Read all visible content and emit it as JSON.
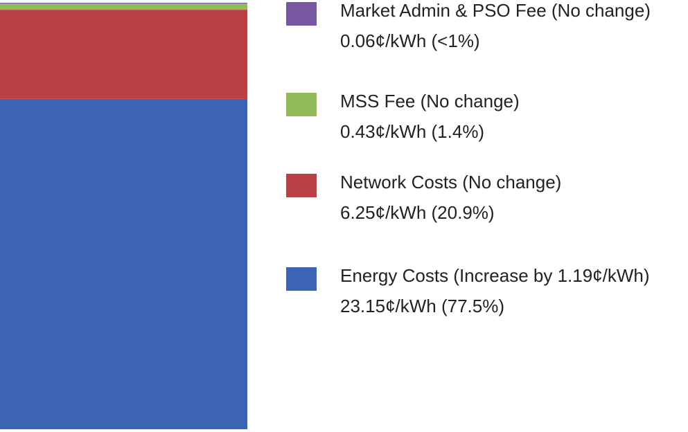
{
  "chart_data": {
    "type": "stacked_bar",
    "categories": [
      null
    ],
    "series": [
      {
        "name": "Energy Costs (Increase by 1.19¢/kWh)",
        "color": "#3b64b4",
        "values": [
          23.15
        ],
        "value_labels": [
          "23.15¢/kWh (77.5%)"
        ]
      },
      {
        "name": "Network Costs (No change)",
        "color": "#b94045",
        "values": [
          6.25
        ],
        "value_labels": [
          "6.25¢/kWh (20.9%)"
        ]
      },
      {
        "name": "MSS Fee (No change)",
        "color": "#94bb5a",
        "values": [
          0.43
        ],
        "value_labels": [
          "0.43¢/kWh (1.4%)"
        ]
      },
      {
        "name": "Market Admin & PSO Fee (No change)",
        "color": "#7657a0",
        "values": [
          0.06
        ],
        "value_labels": [
          "0.06¢/kWh (<1%)"
        ]
      }
    ]
  }
}
